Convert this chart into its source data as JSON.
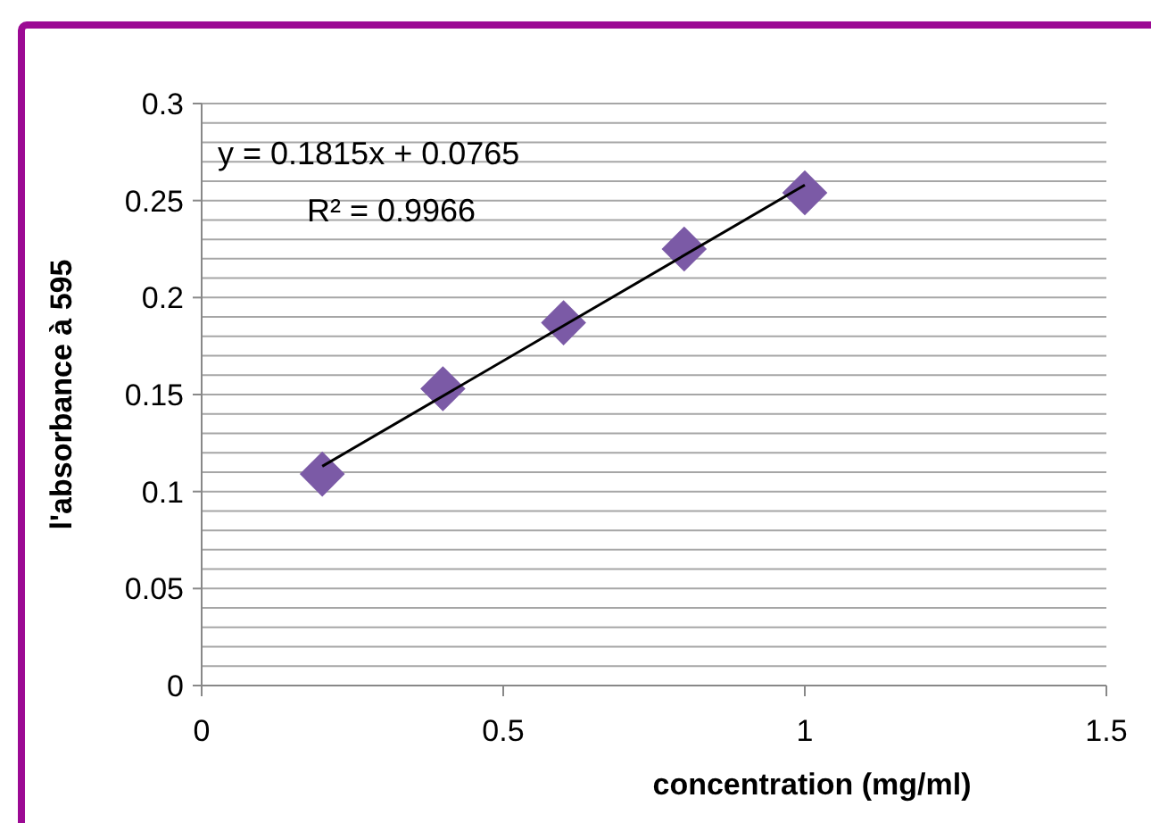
{
  "chart_data": {
    "type": "scatter",
    "xlabel": "concentration (mg/ml)",
    "ylabel": "l'absorbance à 595",
    "x": [
      0.2,
      0.4,
      0.6,
      0.8,
      1
    ],
    "series": [
      {
        "color": "#7b5aa6",
        "marker": "diamond",
        "values": [
          0.109,
          0.153,
          0.187,
          0.225,
          0.254
        ]
      },
      {
        "type": "line",
        "color": "#000000",
        "marker": "none",
        "x": [
          0.2,
          1
        ],
        "values": [
          0.113,
          0.258
        ]
      }
    ],
    "xlim": [
      0,
      1.5
    ],
    "xticks": [
      0,
      0.5,
      1,
      1.5
    ],
    "ylim": [
      0,
      0.3
    ],
    "yticks": [
      0,
      {
        "value": 0.01,
        "label": null
      },
      {
        "value": 0.02,
        "label": null
      },
      {
        "value": 0.03,
        "label": null
      },
      {
        "value": 0.04,
        "label": null
      },
      0.05,
      {
        "value": 0.06,
        "label": null
      },
      {
        "value": 0.07,
        "label": null
      },
      {
        "value": 0.08,
        "label": null
      },
      {
        "value": 0.09,
        "label": null
      },
      0.1,
      {
        "value": 0.11,
        "label": null
      },
      {
        "value": 0.12,
        "label": null
      },
      {
        "value": 0.13,
        "label": null
      },
      {
        "value": 0.14,
        "label": null
      },
      0.15,
      {
        "value": 0.16,
        "label": null
      },
      {
        "value": 0.17,
        "label": null
      },
      {
        "value": 0.18,
        "label": null
      },
      {
        "value": 0.19,
        "label": null
      },
      0.2,
      {
        "value": 0.21,
        "label": null
      },
      {
        "value": 0.22,
        "label": null
      },
      {
        "value": 0.23,
        "label": null
      },
      {
        "value": 0.24,
        "label": null
      },
      0.25,
      {
        "value": 0.26,
        "label": null
      },
      {
        "value": 0.27,
        "label": null
      },
      {
        "value": 0.28,
        "label": null
      },
      {
        "value": 0.29,
        "label": null
      },
      0.3
    ],
    "grid": "y",
    "annotations": [
      "y = 0.1815x + 0.0765",
      "R² = 0.9966"
    ]
  }
}
